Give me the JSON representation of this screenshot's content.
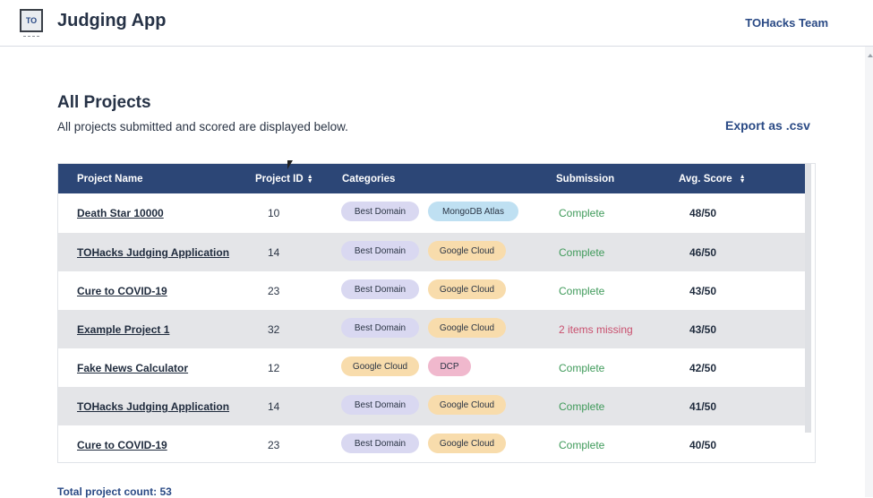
{
  "header": {
    "logo_text": "TO",
    "app_title": "Judging App",
    "team_name": "TOHacks Team"
  },
  "page": {
    "title": "All Projects",
    "subtitle": "All projects submitted and scored are displayed below.",
    "export_label": "Export as .csv",
    "total_count_label": "Total project count: 53"
  },
  "table": {
    "headers": {
      "project_name": "Project Name",
      "project_id": "Project ID",
      "categories": "Categories",
      "submission": "Submission",
      "avg_score": "Avg. Score"
    },
    "rows": [
      {
        "name": "Death Star 10000",
        "id": "10",
        "categories": [
          "Best Domain",
          "MongoDB Atlas"
        ],
        "submission": "Complete",
        "score": "48/50"
      },
      {
        "name": "TOHacks Judging Application",
        "id": "14",
        "categories": [
          "Best Domain",
          "Google Cloud"
        ],
        "submission": "Complete",
        "score": "46/50"
      },
      {
        "name": "Cure to COVID-19",
        "id": "23",
        "categories": [
          "Best Domain",
          "Google Cloud"
        ],
        "submission": "Complete",
        "score": "43/50"
      },
      {
        "name": "Example Project 1",
        "id": "32",
        "categories": [
          "Best Domain",
          "Google Cloud"
        ],
        "submission": "2 items missing",
        "score": "43/50"
      },
      {
        "name": "Fake News Calculator",
        "id": "12",
        "categories": [
          "Google Cloud",
          "DCP"
        ],
        "submission": "Complete",
        "score": "42/50"
      },
      {
        "name": "TOHacks Judging Application",
        "id": "14",
        "categories": [
          "Best Domain",
          "Google Cloud"
        ],
        "submission": "Complete",
        "score": "41/50"
      },
      {
        "name": "Cure to COVID-19",
        "id": "23",
        "categories": [
          "Best Domain",
          "Google Cloud"
        ],
        "submission": "Complete",
        "score": "40/50"
      }
    ]
  },
  "colors": {
    "header_bg": "#2c4676",
    "status_complete": "#3f9a5a",
    "status_missing": "#c9506e",
    "badge_best_domain": "#d9d8f1",
    "badge_mongodb": "#bfe0f2",
    "badge_google_cloud": "#f8dcac",
    "badge_dcp": "#f0b8cd"
  }
}
